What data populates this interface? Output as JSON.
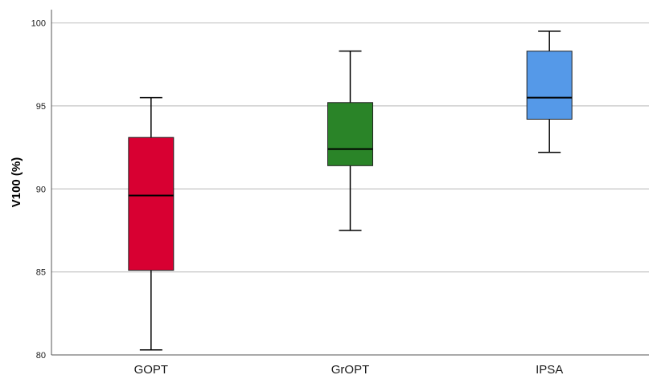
{
  "chart_data": {
    "type": "boxplot",
    "ylabel": "V100 (%)",
    "xlabel": "",
    "ylim": [
      80,
      100.8
    ],
    "yticks": [
      "80",
      "85",
      "90",
      "95",
      "100"
    ],
    "grid": "horizontal",
    "categories": [
      "GOPT",
      "GrOPT",
      "IPSA"
    ],
    "colors": [
      "#d80032",
      "#2a8428",
      "#5599e8"
    ],
    "boxes": [
      {
        "category": "GOPT",
        "whisker_low": 80.3,
        "q1": 85.1,
        "median": 89.6,
        "q3": 93.1,
        "whisker_high": 95.5
      },
      {
        "category": "GrOPT",
        "whisker_low": 87.5,
        "q1": 91.4,
        "median": 92.4,
        "q3": 95.2,
        "whisker_high": 98.3
      },
      {
        "category": "IPSA",
        "whisker_low": 92.2,
        "q1": 94.2,
        "median": 95.5,
        "q3": 98.3,
        "whisker_high": 99.5
      }
    ]
  }
}
